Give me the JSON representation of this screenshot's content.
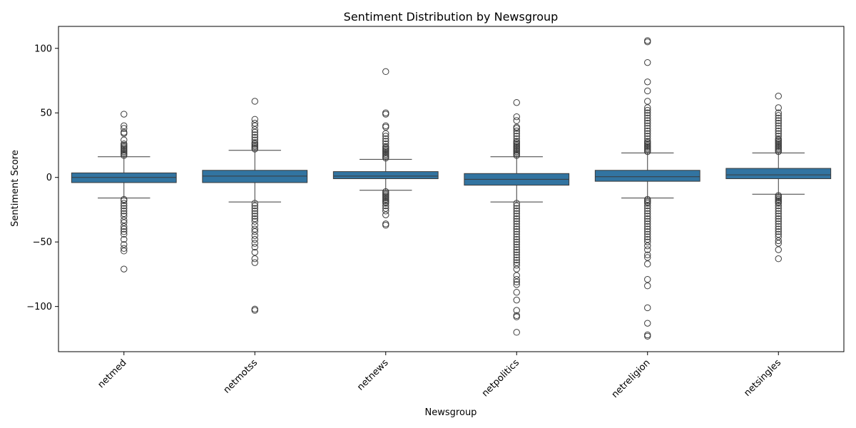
{
  "chart_data": {
    "type": "box",
    "title": "Sentiment Distribution by Newsgroup",
    "xlabel": "Newsgroup",
    "ylabel": "Sentiment Score",
    "ylim": [
      -135,
      117
    ],
    "yticks": [
      -100,
      -50,
      0,
      50,
      100
    ],
    "ytick_labels": [
      "−100",
      "−50",
      "0",
      "50",
      "100"
    ],
    "categories": [
      "netmed",
      "netmotss",
      "netnews",
      "netpolitics",
      "netreligion",
      "netsingles"
    ],
    "box_color": "#3274a1",
    "boxes": [
      {
        "q1": -4,
        "median": 0,
        "q3": 3.5,
        "whisker_low": -16,
        "whisker_high": 16,
        "outliers_high": [
          17,
          18,
          19,
          20,
          21,
          22,
          23,
          24,
          25,
          26,
          29,
          34,
          35,
          38,
          40,
          49
        ],
        "outliers_low": [
          -17,
          -18,
          -20,
          -22,
          -24,
          -26,
          -28,
          -30,
          -33,
          -35,
          -38,
          -40,
          -42,
          -44,
          -48,
          -52,
          -55,
          -57,
          -71
        ]
      },
      {
        "q1": -4,
        "median": 1,
        "q3": 5.5,
        "whisker_low": -19,
        "whisker_high": 21,
        "outliers_high": [
          22,
          23,
          24,
          25,
          26,
          27,
          29,
          31,
          33,
          35,
          37,
          40,
          42,
          45,
          59
        ],
        "outliers_low": [
          -20,
          -22,
          -24,
          -26,
          -28,
          -30,
          -32,
          -34,
          -37,
          -40,
          -42,
          -45,
          -48,
          -51,
          -54,
          -58,
          -63,
          -66,
          -102,
          -103
        ]
      },
      {
        "q1": -1,
        "median": 1,
        "q3": 4.5,
        "whisker_low": -10,
        "whisker_high": 14,
        "outliers_high": [
          15,
          16,
          17,
          18,
          19,
          20,
          21,
          22,
          23,
          24,
          26,
          28,
          30,
          32,
          34,
          39,
          40,
          49,
          50,
          82
        ],
        "outliers_low": [
          -11,
          -12,
          -13,
          -14,
          -15,
          -16,
          -17,
          -18,
          -19,
          -20,
          -22,
          -24,
          -26,
          -29,
          -36,
          -37
        ]
      },
      {
        "q1": -6,
        "median": -1.5,
        "q3": 3,
        "whisker_low": -19,
        "whisker_high": 16,
        "outliers_high": [
          17,
          18,
          19,
          20,
          21,
          22,
          23,
          24,
          25,
          26,
          27,
          28,
          30,
          32,
          34,
          36,
          38,
          39,
          44,
          47,
          58
        ],
        "outliers_low": [
          -20,
          -22,
          -24,
          -26,
          -28,
          -30,
          -32,
          -34,
          -36,
          -38,
          -40,
          -42,
          -44,
          -46,
          -48,
          -50,
          -52,
          -54,
          -56,
          -58,
          -60,
          -62,
          -64,
          -66,
          -68,
          -71,
          -76,
          -79,
          -81,
          -83,
          -89,
          -95,
          -103,
          -107,
          -108,
          -120
        ]
      },
      {
        "q1": -3,
        "median": 0.5,
        "q3": 5.5,
        "whisker_low": -16,
        "whisker_high": 19,
        "outliers_high": [
          20,
          21,
          22,
          23,
          24,
          25,
          26,
          27,
          28,
          30,
          32,
          34,
          36,
          38,
          40,
          42,
          44,
          46,
          48,
          50,
          52,
          54,
          59,
          67,
          74,
          89,
          105,
          106
        ],
        "outliers_low": [
          -17,
          -18,
          -19,
          -20,
          -22,
          -24,
          -26,
          -28,
          -30,
          -32,
          -34,
          -36,
          -38,
          -40,
          -42,
          -44,
          -46,
          -48,
          -50,
          -53,
          -56,
          -60,
          -62,
          -67,
          -79,
          -84,
          -101,
          -113,
          -122,
          -123
        ]
      },
      {
        "q1": -1,
        "median": 2,
        "q3": 7,
        "whisker_low": -13,
        "whisker_high": 19,
        "outliers_high": [
          20,
          21,
          22,
          23,
          24,
          25,
          26,
          27,
          28,
          29,
          30,
          32,
          34,
          36,
          38,
          40,
          42,
          44,
          46,
          48,
          50,
          54,
          63
        ],
        "outliers_low": [
          -14,
          -15,
          -16,
          -17,
          -18,
          -19,
          -20,
          -22,
          -24,
          -26,
          -28,
          -30,
          -32,
          -34,
          -36,
          -38,
          -40,
          -42,
          -44,
          -46,
          -49,
          -51,
          -56,
          -63
        ]
      }
    ]
  }
}
